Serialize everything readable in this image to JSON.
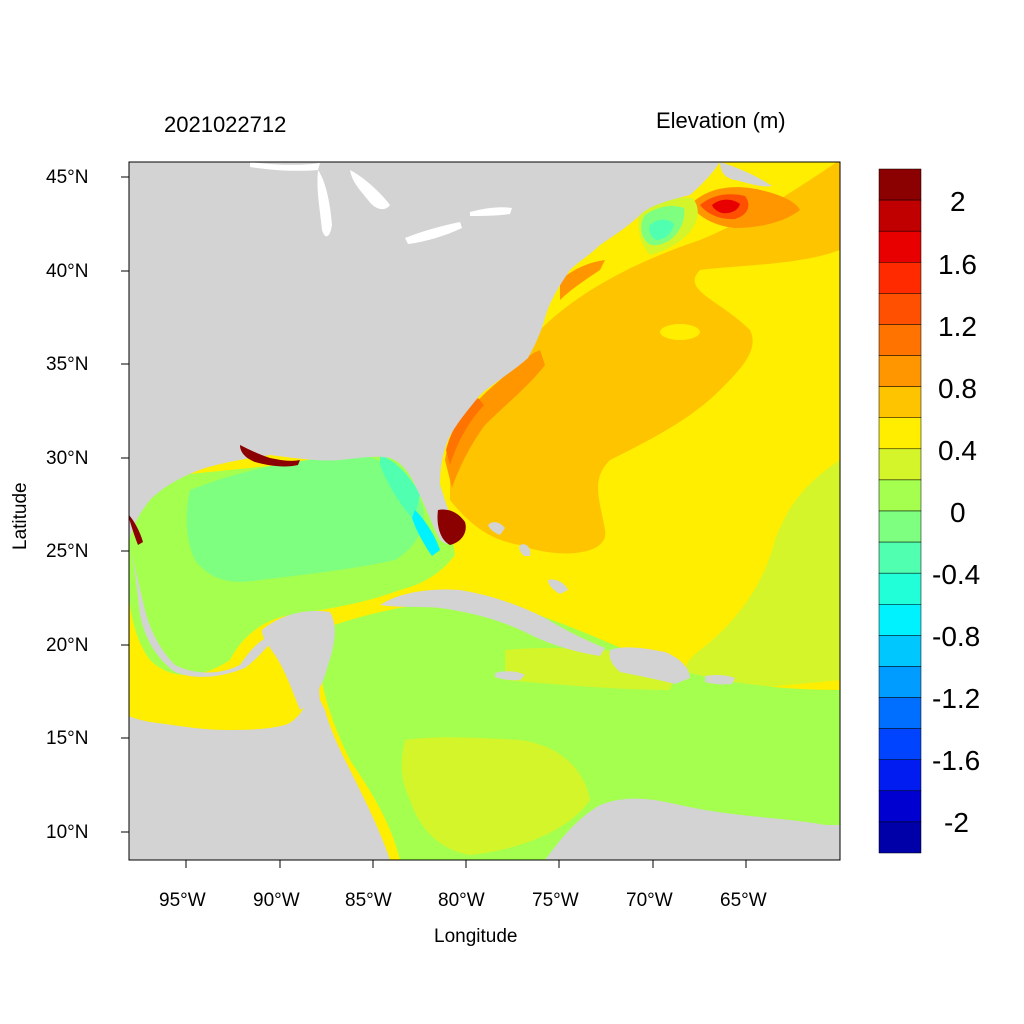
{
  "header": {
    "left_title": "2021022712",
    "right_title": "Elevation (m)"
  },
  "axes": {
    "xlabel": "Longitude",
    "ylabel": "Latitude",
    "x_ticks": [
      "95°W",
      "90°W",
      "85°W",
      "80°W",
      "75°W",
      "70°W",
      "65°W"
    ],
    "y_ticks": [
      "45°N",
      "40°N",
      "35°N",
      "30°N",
      "25°N",
      "20°N",
      "15°N",
      "10°N"
    ]
  },
  "map": {
    "lon_range": [
      -98,
      -60
    ],
    "lat_range": [
      8.5,
      46
    ],
    "land_color": "#d3d3d3",
    "water_body_color": "#ffffff"
  },
  "colorbar": {
    "labels": [
      "2",
      "1.6",
      "1.2",
      "0.8",
      "0.4",
      "0",
      "-0.4",
      "-0.8",
      "-1.2",
      "-1.6",
      "-2"
    ],
    "colors": [
      "#8b0000",
      "#c00000",
      "#e80000",
      "#ff2a00",
      "#ff4f00",
      "#ff7300",
      "#ff9600",
      "#ffc400",
      "#ffee00",
      "#d4f52a",
      "#a5ff4f",
      "#7fff80",
      "#50ffb0",
      "#20ffd8",
      "#00f2ff",
      "#00c8ff",
      "#009cff",
      "#006eff",
      "#0044ff",
      "#001cf0",
      "#0000d0",
      "#0000a8"
    ]
  }
}
